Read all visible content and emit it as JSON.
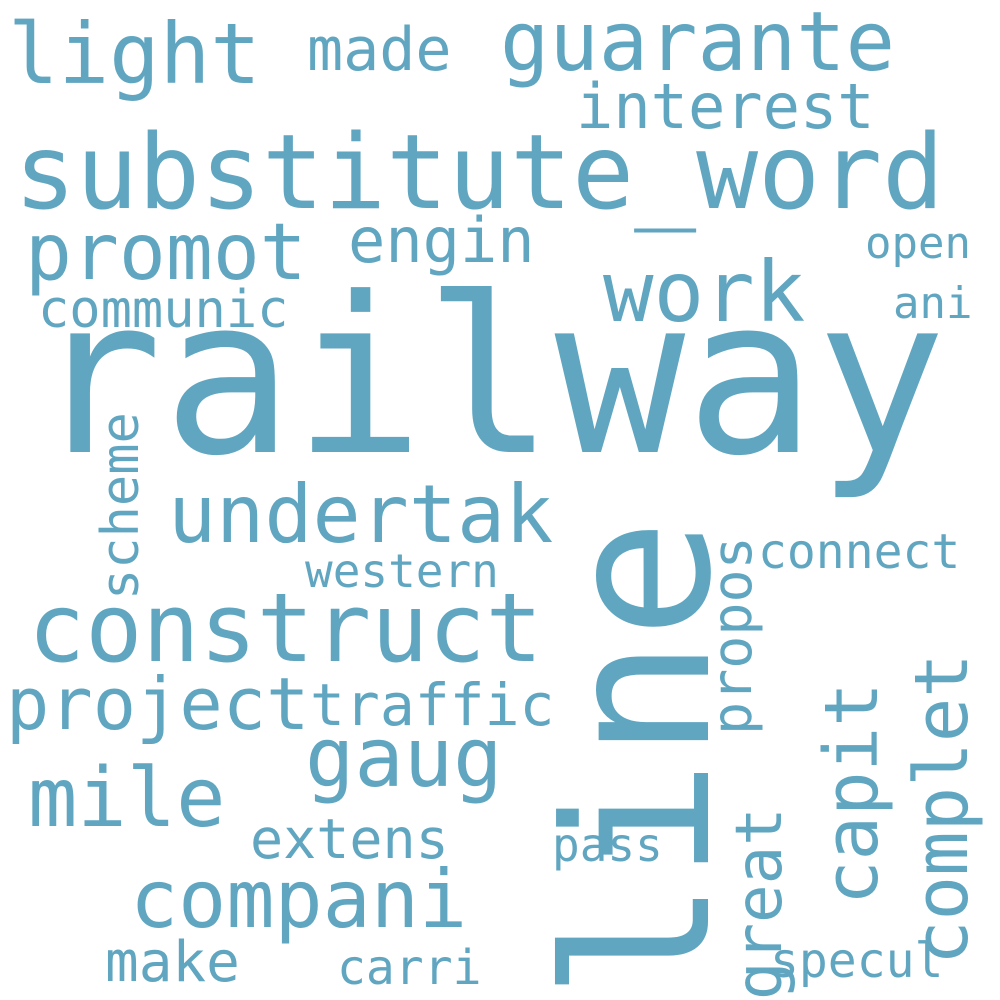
{
  "style": {
    "word_color": "#61a6c1",
    "background": "#ffffff"
  },
  "words": {
    "railway": "railway",
    "line": "line",
    "substitute_word": "substitute_word",
    "construct": "construct",
    "undertak": "undertak",
    "work": "work",
    "promot": "promot",
    "guarante": "guarante",
    "light": "light",
    "compani": "compani",
    "mile": "mile",
    "gaug": "gaug",
    "project": "project",
    "interest": "interest",
    "engin": "engin",
    "made": "made",
    "communic": "communic",
    "traffic": "traffic",
    "extens": "extens",
    "western": "western",
    "connect": "connect",
    "make": "make",
    "carri": "carri",
    "pass": "pass",
    "specul": "specul",
    "open": "open",
    "ani": "ani",
    "scheme": "scheme",
    "propos": "propos",
    "great": "great",
    "capit": "capit",
    "complet": "complet"
  }
}
